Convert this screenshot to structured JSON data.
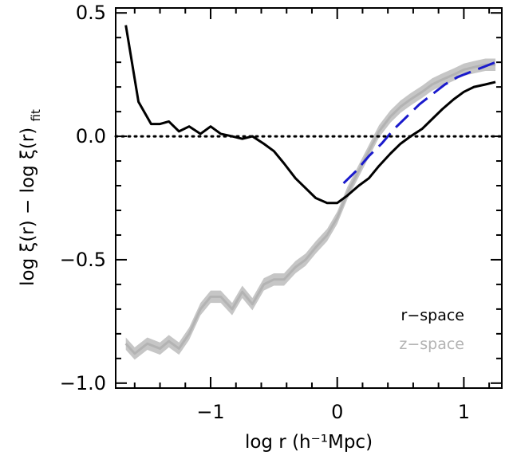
{
  "chart_data": {
    "type": "line",
    "xlabel": "log r (h⁻¹Mpc)",
    "ylabel": "log ξ(r) − log ξ(r)",
    "ylabel_subscript": "fit",
    "xlim": [
      -1.75,
      1.3
    ],
    "ylim": [
      -1.02,
      0.52
    ],
    "x_ticks": [
      -1,
      0,
      1
    ],
    "x_tick_labels": [
      "−1",
      "0",
      "1"
    ],
    "y_ticks": [
      0.5,
      0.0,
      -0.5,
      -1.0
    ],
    "y_tick_labels": [
      "0.5",
      "0.0",
      "−0.5",
      "−1.0"
    ],
    "x_minor_step": 0.2,
    "y_minor_step": 0.1,
    "grid": false,
    "legend_placement": "bottom-right",
    "legend": [
      {
        "label": "r−space",
        "color": "#000000"
      },
      {
        "label": "z−space",
        "color": "#b3b3b3"
      }
    ],
    "reference_line": {
      "y": 0.0,
      "style": "dotted",
      "color": "#000000"
    },
    "series": [
      {
        "name": "r−space",
        "color": "#000000",
        "style": "solid",
        "x": [
          -1.67,
          -1.57,
          -1.47,
          -1.4,
          -1.33,
          -1.25,
          -1.17,
          -1.08,
          -1.0,
          -0.92,
          -0.83,
          -0.75,
          -0.67,
          -0.58,
          -0.5,
          -0.42,
          -0.33,
          -0.25,
          -0.17,
          -0.08,
          0.0,
          0.08,
          0.17,
          0.25,
          0.33,
          0.42,
          0.5,
          0.58,
          0.67,
          0.75,
          0.83,
          0.92,
          1.0,
          1.08,
          1.17,
          1.25
        ],
        "y": [
          0.45,
          0.14,
          0.05,
          0.05,
          0.06,
          0.02,
          0.04,
          0.01,
          0.04,
          0.01,
          0.0,
          -0.01,
          0.0,
          -0.03,
          -0.06,
          -0.11,
          -0.17,
          -0.21,
          -0.25,
          -0.27,
          -0.27,
          -0.24,
          -0.2,
          -0.17,
          -0.12,
          -0.07,
          -0.03,
          0.0,
          0.03,
          0.07,
          0.11,
          0.15,
          0.18,
          0.2,
          0.21,
          0.22
        ]
      },
      {
        "name": "z−space",
        "color": "#b3b3b3",
        "style": "solid",
        "band": 0.025,
        "x": [
          -1.67,
          -1.6,
          -1.5,
          -1.4,
          -1.33,
          -1.25,
          -1.17,
          -1.08,
          -1.0,
          -0.92,
          -0.83,
          -0.75,
          -0.67,
          -0.58,
          -0.5,
          -0.42,
          -0.33,
          -0.25,
          -0.17,
          -0.08,
          0.0,
          0.08,
          0.17,
          0.25,
          0.33,
          0.42,
          0.5,
          0.58,
          0.67,
          0.75,
          0.83,
          0.92,
          1.0,
          1.08,
          1.17,
          1.25
        ],
        "y": [
          -0.84,
          -0.88,
          -0.84,
          -0.86,
          -0.83,
          -0.86,
          -0.8,
          -0.7,
          -0.65,
          -0.65,
          -0.7,
          -0.63,
          -0.68,
          -0.6,
          -0.58,
          -0.58,
          -0.53,
          -0.5,
          -0.45,
          -0.4,
          -0.33,
          -0.23,
          -0.14,
          -0.06,
          0.02,
          0.08,
          0.12,
          0.15,
          0.18,
          0.21,
          0.23,
          0.25,
          0.27,
          0.28,
          0.29,
          0.29
        ]
      },
      {
        "name": "",
        "color": "#1a1acc",
        "style": "dashed",
        "x": [
          0.05,
          0.15,
          0.25,
          0.35,
          0.45,
          0.55,
          0.65,
          0.75,
          0.85,
          0.95,
          1.05,
          1.15,
          1.25
        ],
        "y": [
          -0.19,
          -0.14,
          -0.08,
          -0.03,
          0.03,
          0.08,
          0.13,
          0.17,
          0.21,
          0.24,
          0.26,
          0.28,
          0.3
        ]
      }
    ]
  }
}
